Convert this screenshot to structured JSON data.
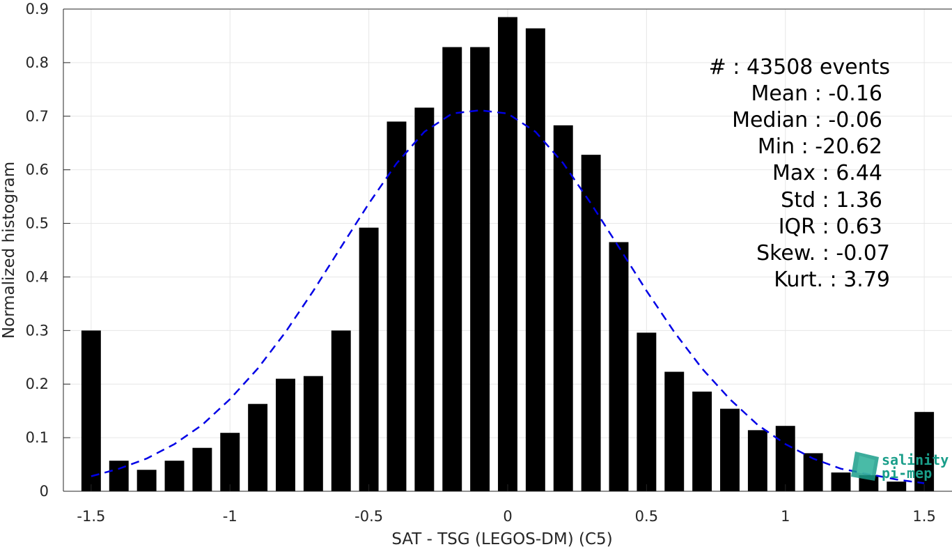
{
  "chart_data": {
    "type": "bar",
    "title": "",
    "xlabel": "SAT - TSG (LEGOS-DM) (C5)",
    "ylabel": "Normalized histogram",
    "xlim": [
      -1.6,
      1.6
    ],
    "ylim": [
      0,
      0.9
    ],
    "grid": true,
    "bar_width": 0.07,
    "x_ticks": [
      -1.5,
      -1,
      -0.5,
      0,
      0.5,
      1,
      1.5
    ],
    "x_tick_labels": [
      "-1.5",
      "-1",
      "-0.5",
      "0",
      "0.5",
      "1",
      "1.5"
    ],
    "y_ticks": [
      0,
      0.1,
      0.2,
      0.3,
      0.4,
      0.5,
      0.6,
      0.7,
      0.8,
      0.9
    ],
    "y_tick_labels": [
      "0",
      "0.1",
      "0.2",
      "0.3",
      "0.4",
      "0.5",
      "0.6",
      "0.7",
      "0.8",
      "0.9"
    ],
    "x": [
      -1.5,
      -1.4,
      -1.3,
      -1.2,
      -1.1,
      -1.0,
      -0.9,
      -0.8,
      -0.7,
      -0.6,
      -0.5,
      -0.4,
      -0.3,
      -0.2,
      -0.1,
      0.0,
      0.1,
      0.2,
      0.3,
      0.4,
      0.5,
      0.6,
      0.7,
      0.8,
      0.9,
      1.0,
      1.1,
      1.2,
      1.3,
      1.4,
      1.5
    ],
    "values": [
      0.3,
      0.057,
      0.04,
      0.057,
      0.081,
      0.109,
      0.163,
      0.21,
      0.215,
      0.3,
      0.492,
      0.69,
      0.716,
      0.829,
      0.829,
      0.885,
      0.864,
      0.683,
      0.628,
      0.465,
      0.296,
      0.223,
      0.186,
      0.154,
      0.114,
      0.122,
      0.071,
      0.035,
      0.03,
      0.018,
      0.148
    ],
    "fit_curve": {
      "style": "dashed",
      "color": "#0000e6",
      "x": [
        -1.5,
        -1.4,
        -1.3,
        -1.2,
        -1.1,
        -1.0,
        -0.9,
        -0.8,
        -0.7,
        -0.6,
        -0.5,
        -0.4,
        -0.3,
        -0.2,
        -0.1,
        0.0,
        0.1,
        0.2,
        0.3,
        0.4,
        0.5,
        0.6,
        0.7,
        0.8,
        0.9,
        1.0,
        1.1,
        1.2,
        1.3,
        1.4,
        1.5
      ],
      "y": [
        0.028,
        0.042,
        0.061,
        0.088,
        0.124,
        0.172,
        0.229,
        0.297,
        0.374,
        0.456,
        0.537,
        0.612,
        0.671,
        0.705,
        0.711,
        0.705,
        0.671,
        0.612,
        0.537,
        0.456,
        0.374,
        0.297,
        0.229,
        0.172,
        0.124,
        0.088,
        0.061,
        0.042,
        0.032,
        0.022,
        0.015
      ]
    },
    "bar_color": "#000000",
    "annotations": [
      "#  : 43508 events",
      "Mean : -0.16",
      "Median : -0.06",
      "Min : -20.62",
      "Max : 6.44",
      "Std : 1.36",
      "IQR : 0.63",
      "Skew. : -0.07",
      "Kurt. : 3.79"
    ]
  },
  "logo": {
    "line1": "salinity",
    "line2": "pi-mep",
    "color": "#1a9e8a"
  }
}
